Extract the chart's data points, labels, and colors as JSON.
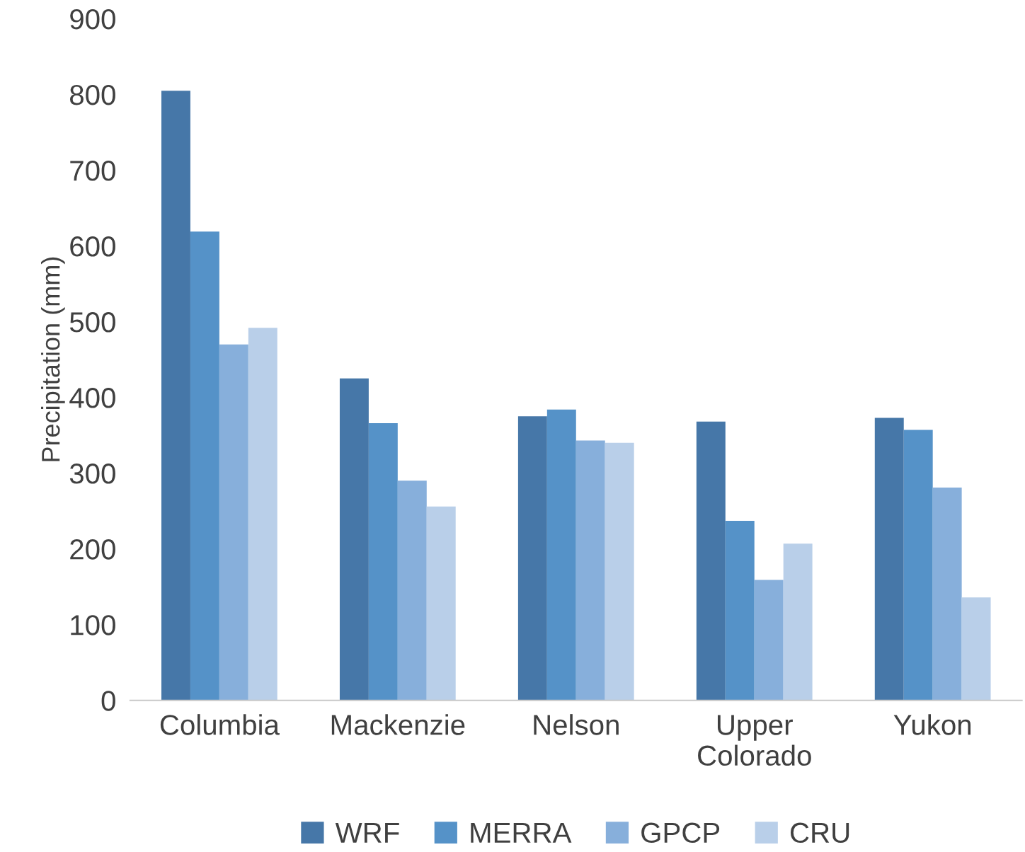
{
  "chart_data": {
    "type": "bar",
    "ylabel": "Precipitation (mm)",
    "categories": [
      "Columbia",
      "Mackenzie",
      "Nelson",
      "Upper\nColorado",
      "Yukon"
    ],
    "series": [
      {
        "name": "WRF",
        "color": "#4677a8",
        "values": [
          805,
          425,
          375,
          368,
          373
        ]
      },
      {
        "name": "MERRA",
        "color": "#5592c8",
        "values": [
          619,
          366,
          384,
          237,
          357
        ]
      },
      {
        "name": "GPCP",
        "color": "#87afdb",
        "values": [
          470,
          290,
          343,
          159,
          281
        ]
      },
      {
        "name": "CRU",
        "color": "#b9cfe9",
        "values": [
          492,
          256,
          340,
          207,
          136
        ]
      }
    ],
    "ylim": [
      0,
      900
    ],
    "yticks": [
      0,
      100,
      200,
      300,
      400,
      500,
      600,
      700,
      800,
      900
    ],
    "grid": false,
    "legend": "bottom"
  }
}
